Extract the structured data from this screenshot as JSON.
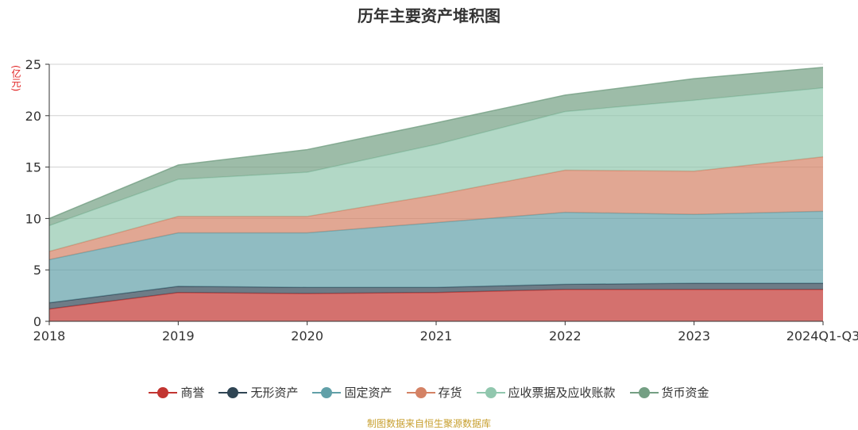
{
  "chart_data": {
    "type": "area",
    "stacked": true,
    "title": "历年主要资产堆积图",
    "ylabel": "(亿元)",
    "categories": [
      "2018",
      "2019",
      "2020",
      "2021",
      "2022",
      "2023",
      "2024Q1-Q3"
    ],
    "ylim": [
      0,
      25
    ],
    "yticks": [
      0,
      5,
      10,
      15,
      20,
      25
    ],
    "series": [
      {
        "name": "商誉",
        "color": "#c23531",
        "values": [
          1.2,
          2.8,
          2.7,
          2.8,
          3.1,
          3.1,
          3.1
        ]
      },
      {
        "name": "无形资产",
        "color": "#2f4554",
        "values": [
          0.6,
          0.6,
          0.6,
          0.5,
          0.5,
          0.6,
          0.6
        ]
      },
      {
        "name": "固定资产",
        "color": "#61a0a8",
        "values": [
          4.2,
          5.2,
          5.3,
          6.3,
          7.0,
          6.7,
          7.0
        ]
      },
      {
        "name": "存货",
        "color": "#d48265",
        "values": [
          0.8,
          1.6,
          1.6,
          2.7,
          4.1,
          4.2,
          5.3
        ]
      },
      {
        "name": "应收票据及应收账款",
        "color": "#91c7ae",
        "values": [
          2.5,
          3.6,
          4.3,
          4.9,
          5.7,
          6.9,
          6.7
        ]
      },
      {
        "name": "货币资金",
        "color": "#749f83",
        "values": [
          0.7,
          1.4,
          2.2,
          2.1,
          1.6,
          2.1,
          2.0
        ]
      }
    ],
    "legend_position": "bottom"
  },
  "source_note": "制图数据来自恒生聚源数据库"
}
